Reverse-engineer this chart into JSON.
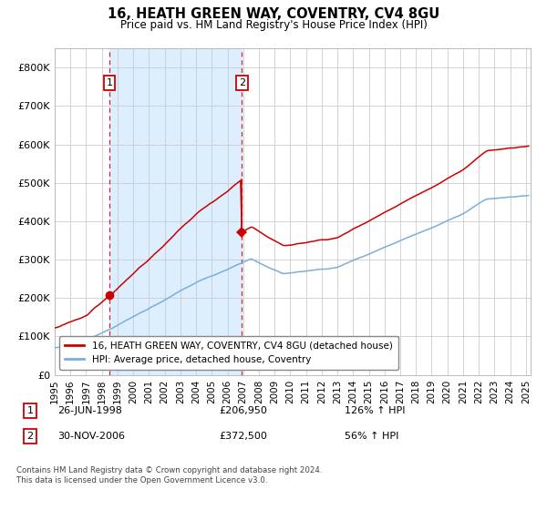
{
  "title": "16, HEATH GREEN WAY, COVENTRY, CV4 8GU",
  "subtitle": "Price paid vs. HM Land Registry's House Price Index (HPI)",
  "ylim": [
    0,
    850000
  ],
  "yticks": [
    0,
    100000,
    200000,
    300000,
    400000,
    500000,
    600000,
    700000,
    800000
  ],
  "ytick_labels": [
    "£0",
    "£100K",
    "£200K",
    "£300K",
    "£400K",
    "£500K",
    "£600K",
    "£700K",
    "£800K"
  ],
  "sale1_date": 1998.49,
  "sale1_price": 206950,
  "sale1_label": "1",
  "sale2_date": 2006.92,
  "sale2_price": 372500,
  "sale2_label": "2",
  "sale1_text": "26-JUN-1998",
  "sale1_amount": "£206,950",
  "sale1_hpi": "126% ↑ HPI",
  "sale2_text": "30-NOV-2006",
  "sale2_amount": "£372,500",
  "sale2_hpi": "56% ↑ HPI",
  "legend_label1": "16, HEATH GREEN WAY, COVENTRY, CV4 8GU (detached house)",
  "legend_label2": "HPI: Average price, detached house, Coventry",
  "footer": "Contains HM Land Registry data © Crown copyright and database right 2024.\nThis data is licensed under the Open Government Licence v3.0.",
  "line1_color": "#cc0000",
  "line2_color": "#7aaedc",
  "shade_color": "#ddeeff",
  "background_color": "#ffffff",
  "grid_color": "#cccccc",
  "xlim_start": 1995.0,
  "xlim_end": 2025.3
}
